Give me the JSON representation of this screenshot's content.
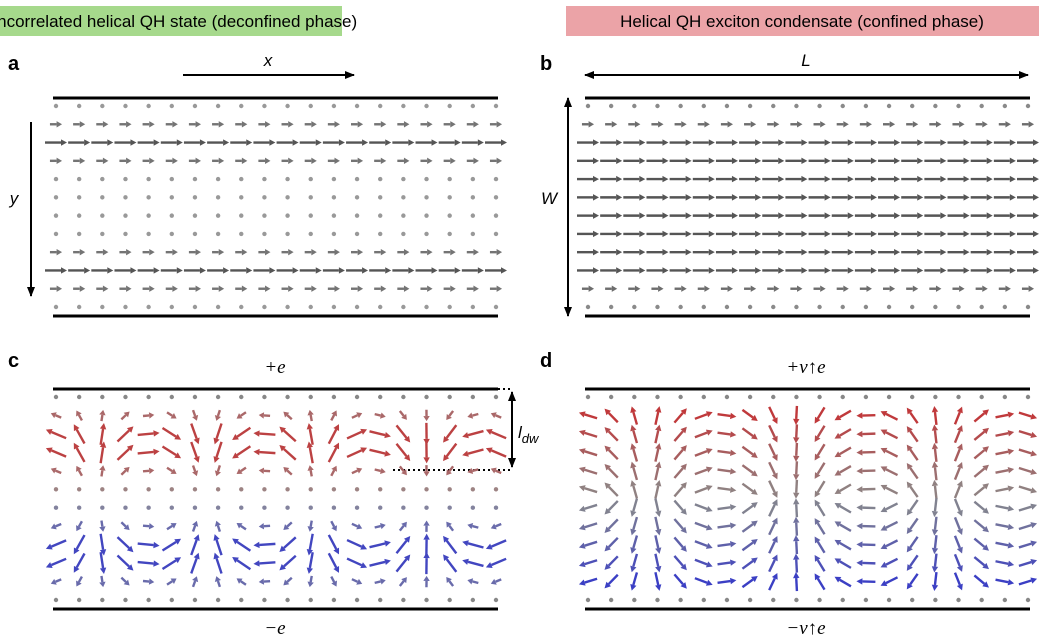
{
  "banners": {
    "left": {
      "text": "Uncorrelated helical QH state (deconfined phase)",
      "color": "#a6d98c"
    },
    "right": {
      "text": "Helical QH exciton condensate (confined phase)",
      "color": "#eba3a7"
    }
  },
  "panels": {
    "a": {
      "label": "a",
      "x_axis": "x",
      "y_axis": "y"
    },
    "b": {
      "label": "b",
      "length": "L",
      "width": "W"
    },
    "c": {
      "label": "c",
      "top_charge": "+e",
      "bottom_charge": "−e",
      "domain_wall": "l",
      "domain_wall_sub": "dw"
    },
    "d": {
      "label": "d",
      "top_charge": "+ν↑e",
      "bottom_charge": "−ν↑e"
    }
  },
  "colors": {
    "gray": "#6e6e6e",
    "red": "#c0393b",
    "blue": "#3b3fc4",
    "edge": "#000000"
  }
}
